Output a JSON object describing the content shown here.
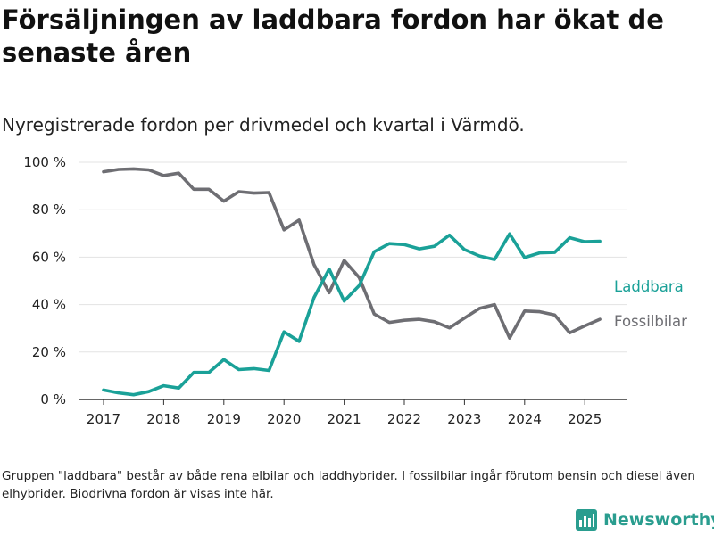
{
  "title": "Försäljningen av laddbara fordon har ökat de senaste åren",
  "subtitle": "Nyregistrerade fordon per drivmedel och kvartal i Värmdö.",
  "footnote": "Gruppen \"laddbara\" består av både rena elbilar och laddhybrider. I fossilbilar ingår förutom bensin och diesel även elhybrider. Biodrivna fordon är visas inte här.",
  "brand": {
    "name": "Newsworthy",
    "icon": "bar-chart-logo-icon"
  },
  "colors": {
    "laddbara": "#1aa198",
    "fossil": "#6e6e73",
    "grid": "#e3e3e3",
    "axis": "#333333",
    "text": "#222222"
  },
  "chart_data": {
    "type": "line",
    "x_unit": "quarter",
    "ylim": [
      0,
      100
    ],
    "yticks": [
      0,
      20,
      40,
      60,
      80,
      100
    ],
    "ytick_labels": [
      "0 %",
      "20 %",
      "40 %",
      "60 %",
      "80 %",
      "100 %"
    ],
    "xticks": [
      2017,
      2018,
      2019,
      2020,
      2021,
      2022,
      2023,
      2024,
      2025
    ],
    "xtick_labels": [
      "2017",
      "2018",
      "2019",
      "2020",
      "2021",
      "2022",
      "2023",
      "2024",
      "2025"
    ],
    "x": [
      "2017 Q1",
      "2017 Q2",
      "2017 Q3",
      "2017 Q4",
      "2018 Q1",
      "2018 Q2",
      "2018 Q3",
      "2018 Q4",
      "2019 Q1",
      "2019 Q2",
      "2019 Q3",
      "2019 Q4",
      "2020 Q1",
      "2020 Q2",
      "2020 Q3",
      "2020 Q4",
      "2021 Q1",
      "2021 Q2",
      "2021 Q3",
      "2021 Q4",
      "2022 Q1",
      "2022 Q2",
      "2022 Q3",
      "2022 Q4",
      "2023 Q1",
      "2023 Q2",
      "2023 Q3",
      "2023 Q4",
      "2024 Q1",
      "2024 Q2",
      "2024 Q3",
      "2024 Q4",
      "2025 Q1",
      "2025 Q2"
    ],
    "series": [
      {
        "name": "Laddbara",
        "color": "#1aa198",
        "values": [
          4.0,
          2.8,
          2.0,
          3.3,
          5.8,
          4.8,
          11.4,
          11.4,
          16.8,
          12.6,
          13.0,
          12.2,
          28.5,
          24.5,
          43.0,
          55.0,
          41.5,
          48.0,
          62.3,
          65.7,
          65.3,
          63.5,
          64.6,
          69.3,
          63.2,
          60.5,
          59.0,
          69.8,
          59.8,
          61.8,
          62.0,
          68.2,
          66.5,
          66.7
        ]
      },
      {
        "name": "Fossilbilar",
        "color": "#6e6e73",
        "values": [
          96.0,
          97.0,
          97.2,
          96.8,
          94.4,
          95.4,
          88.6,
          88.6,
          83.6,
          87.6,
          87.0,
          87.2,
          71.5,
          75.6,
          56.8,
          45.0,
          58.6,
          51.4,
          36.0,
          32.5,
          33.4,
          33.8,
          32.8,
          30.2,
          34.3,
          38.4,
          40.0,
          25.9,
          37.3,
          37.0,
          35.6,
          28.1,
          31.0,
          33.8
        ]
      }
    ]
  }
}
